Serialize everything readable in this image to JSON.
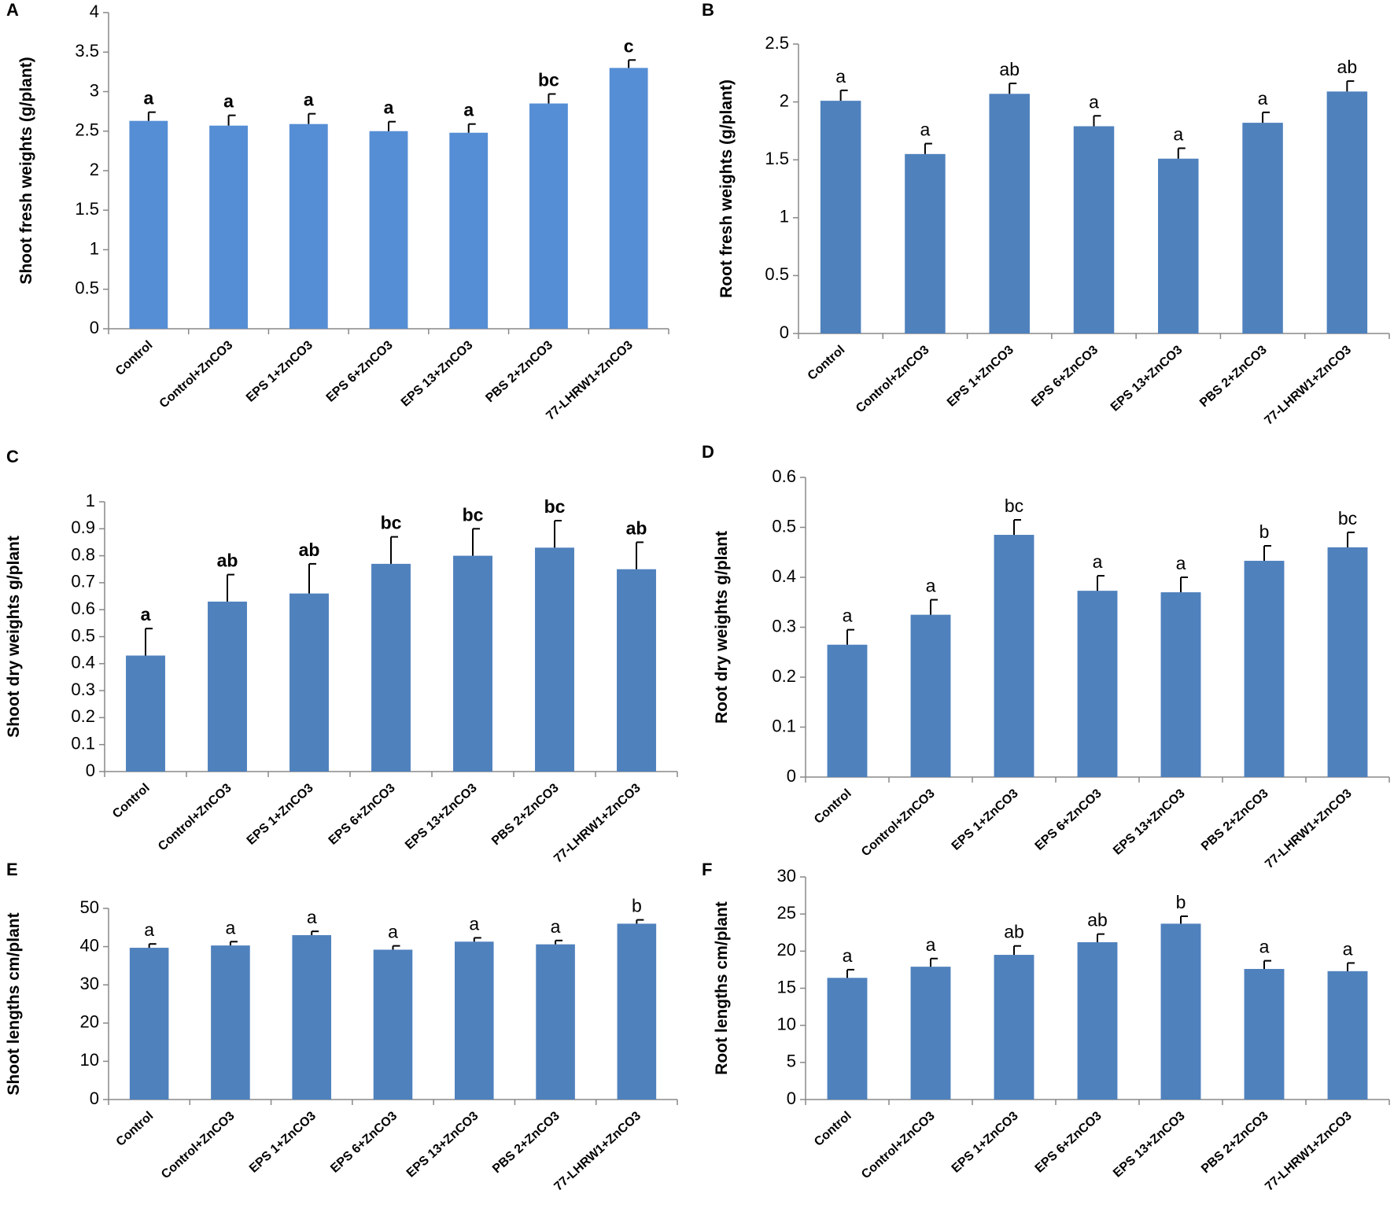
{
  "chart_data": [
    {
      "type": "bar",
      "panel": "A",
      "y_label": "Shoot fresh weights (g/plant)",
      "color": "#558ed5",
      "bold_letters": true,
      "categories": [
        "Control",
        "Control+ZnCO3",
        "EPS 1+ZnCO3",
        "EPS 6+ZnCO3",
        "EPS 13+ZnCO3",
        "PBS 2+ZnCO3",
        "77-LHRW1+ZnCO3"
      ],
      "values": [
        2.63,
        2.57,
        2.59,
        2.5,
        2.48,
        2.85,
        3.3
      ],
      "errors": [
        0.11,
        0.13,
        0.13,
        0.12,
        0.11,
        0.12,
        0.1
      ],
      "letters": [
        "a",
        "a",
        "a",
        "a",
        "a",
        "bc",
        "c"
      ],
      "ylim": [
        0,
        4
      ],
      "yticks": [
        0,
        0.5,
        1,
        1.5,
        2,
        2.5,
        3,
        3.5,
        4
      ]
    },
    {
      "type": "bar",
      "panel": "B",
      "y_label": "Root fresh weights (g/plant)",
      "color": "#4f81bd",
      "bold_letters": false,
      "categories": [
        "Control",
        "Control+ZnCO3",
        "EPS 1+ZnCO3",
        "EPS 6+ZnCO3",
        "EPS 13+ZnCO3",
        "PBS 2+ZnCO3",
        "77-LHRW1+ZnCO3"
      ],
      "values": [
        2.01,
        1.55,
        2.07,
        1.79,
        1.51,
        1.82,
        2.09
      ],
      "errors": [
        0.09,
        0.09,
        0.09,
        0.09,
        0.09,
        0.09,
        0.09
      ],
      "letters": [
        "a",
        "a",
        "ab",
        "a",
        "a",
        "a",
        "ab"
      ],
      "ylim": [
        0,
        2.5
      ],
      "yticks": [
        0,
        0.5,
        1,
        1.5,
        2,
        2.5
      ]
    },
    {
      "type": "bar",
      "panel": "C",
      "y_label": "Shoot dry weights g/plant",
      "color": "#4f81bd",
      "bold_letters": true,
      "categories": [
        "Control",
        "Control+ZnCO3",
        "EPS 1+ZnCO3",
        "EPS 6+ZnCO3",
        "EPS 13+ZnCO3",
        "PBS 2+ZnCO3",
        "77-LHRW1+ZnCO3"
      ],
      "values": [
        0.43,
        0.63,
        0.66,
        0.77,
        0.8,
        0.83,
        0.75
      ],
      "errors": [
        0.1,
        0.1,
        0.11,
        0.1,
        0.1,
        0.1,
        0.1
      ],
      "letters": [
        "a",
        "ab",
        "ab",
        "bc",
        "bc",
        "bc",
        "ab"
      ],
      "ylim": [
        0,
        1
      ],
      "yticks": [
        0,
        0.1,
        0.2,
        0.3,
        0.4,
        0.5,
        0.6,
        0.7,
        0.8,
        0.9,
        1
      ]
    },
    {
      "type": "bar",
      "panel": "D",
      "y_label": "Root dry weights g/plant",
      "color": "#4f81bd",
      "bold_letters": false,
      "categories": [
        "Control",
        "Control+ZnCO3",
        "EPS 1+ZnCO3",
        "EPS 6+ZnCO3",
        "EPS 13+ZnCO3",
        "PBS 2+ZnCO3",
        "77-LHRW1+ZnCO3"
      ],
      "values": [
        0.265,
        0.325,
        0.485,
        0.373,
        0.37,
        0.433,
        0.46
      ],
      "errors": [
        0.03,
        0.03,
        0.03,
        0.03,
        0.03,
        0.03,
        0.03
      ],
      "letters": [
        "a",
        "a",
        "bc",
        "a",
        "a",
        "b",
        "bc"
      ],
      "ylim": [
        0,
        0.6
      ],
      "yticks": [
        0,
        0.1,
        0.2,
        0.3,
        0.4,
        0.5,
        0.6
      ]
    },
    {
      "type": "bar",
      "panel": "E",
      "y_label": "Shoot lengths cm/plant",
      "color": "#4f81bd",
      "bold_letters": false,
      "categories": [
        "Control",
        "Control+ZnCO3",
        "EPS 1+ZnCO3",
        "EPS 6+ZnCO3",
        "EPS 13+ZnCO3",
        "PBS 2+ZnCO3",
        "77-LHRW1+ZnCO3"
      ],
      "values": [
        39.7,
        40.3,
        43,
        39.2,
        41.3,
        40.6,
        46
      ],
      "errors": [
        1,
        1,
        1,
        1,
        1,
        1,
        1
      ],
      "letters": [
        "a",
        "a",
        "a",
        "a",
        "a",
        "a",
        "b"
      ],
      "ylim": [
        0,
        50
      ],
      "yticks": [
        0,
        10,
        20,
        30,
        40,
        50
      ]
    },
    {
      "type": "bar",
      "panel": "F",
      "y_label": "Root lengths cm/plant",
      "color": "#4f81bd",
      "bold_letters": false,
      "categories": [
        "Control",
        "Control+ZnCO3",
        "EPS 1+ZnCO3",
        "EPS 6+ZnCO3",
        "EPS 13+ZnCO3",
        "PBS 2+ZnCO3",
        "77-LHRW1+ZnCO3"
      ],
      "values": [
        16.4,
        17.9,
        19.5,
        21.2,
        23.7,
        17.6,
        17.3
      ],
      "errors": [
        1.1,
        1.1,
        1.2,
        1.1,
        1,
        1.1,
        1.1
      ],
      "letters": [
        "a",
        "a",
        "ab",
        "ab",
        "b",
        "a",
        "a"
      ],
      "ylim": [
        0,
        30
      ],
      "yticks": [
        0,
        5,
        10,
        15,
        20,
        25,
        30
      ]
    }
  ]
}
